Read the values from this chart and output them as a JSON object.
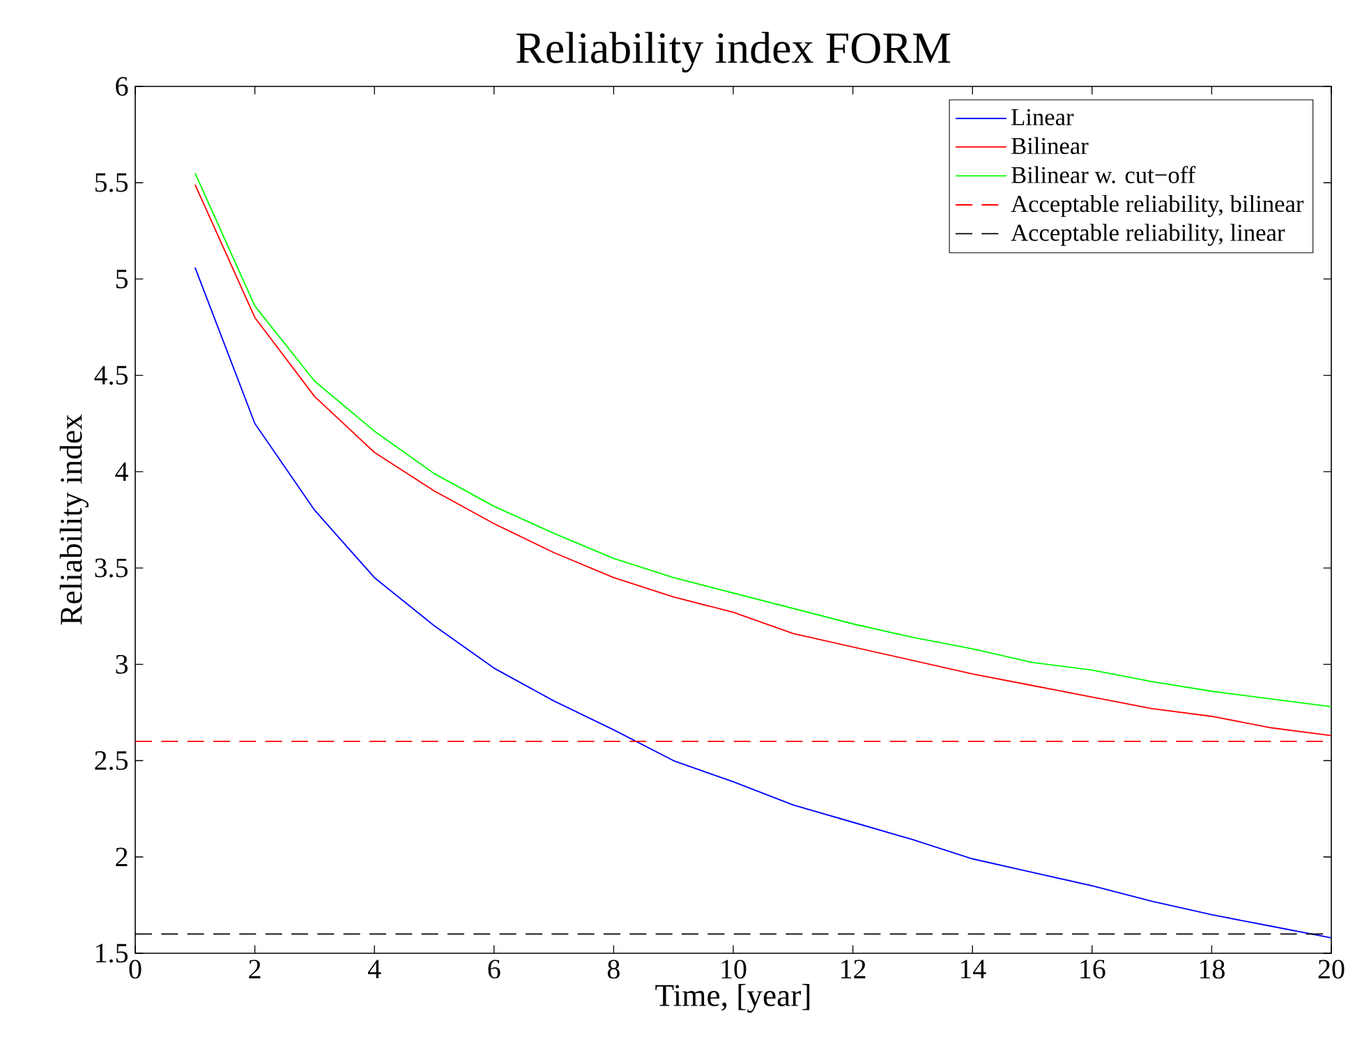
{
  "chart_data": {
    "type": "line",
    "title": "Reliability index FORM",
    "xlabel": "Time, [year]",
    "ylabel": "Reliability index",
    "x": [
      1,
      2,
      3,
      4,
      5,
      6,
      7,
      8,
      9,
      10,
      11,
      12,
      13,
      14,
      15,
      16,
      17,
      18,
      19,
      20
    ],
    "series": [
      {
        "name": "Linear",
        "color": "#0000ff",
        "values": [
          5.06,
          4.25,
          3.8,
          3.45,
          3.2,
          2.98,
          2.81,
          2.66,
          2.5,
          2.39,
          2.27,
          2.18,
          2.09,
          1.99,
          1.92,
          1.85,
          1.77,
          1.7,
          1.64,
          1.58
        ]
      },
      {
        "name": "Bilinear",
        "color": "#ff0000",
        "values": [
          5.49,
          4.8,
          4.39,
          4.1,
          3.9,
          3.73,
          3.58,
          3.45,
          3.35,
          3.27,
          3.16,
          3.09,
          3.02,
          2.95,
          2.89,
          2.83,
          2.77,
          2.73,
          2.67,
          2.63
        ]
      },
      {
        "name": "Bilinear w. cut−off",
        "color": "#00ff00",
        "values": [
          5.55,
          4.86,
          4.47,
          4.21,
          3.99,
          3.82,
          3.68,
          3.55,
          3.45,
          3.37,
          3.29,
          3.21,
          3.14,
          3.08,
          3.01,
          2.97,
          2.91,
          2.86,
          2.82,
          2.78
        ]
      }
    ],
    "ref_lines": [
      {
        "axis": "y",
        "value": 2.6,
        "label": "Acceptable reliability, bilinear",
        "color": "#ff0000",
        "line_style": "dashed"
      },
      {
        "axis": "y",
        "value": 1.6,
        "label": "Acceptable reliability, linear",
        "color": "#000000",
        "line_style": "dashed"
      }
    ],
    "xlim": [
      0,
      20
    ],
    "xticks": [
      0,
      2,
      4,
      6,
      8,
      10,
      12,
      14,
      16,
      18,
      20
    ],
    "ylim": [
      1.5,
      6
    ],
    "yticks": [
      1.5,
      2,
      2.5,
      3,
      3.5,
      4,
      4.5,
      5,
      5.5,
      6
    ],
    "legend": "top right",
    "grid": false,
    "marker": "none",
    "line_style": "solid"
  }
}
